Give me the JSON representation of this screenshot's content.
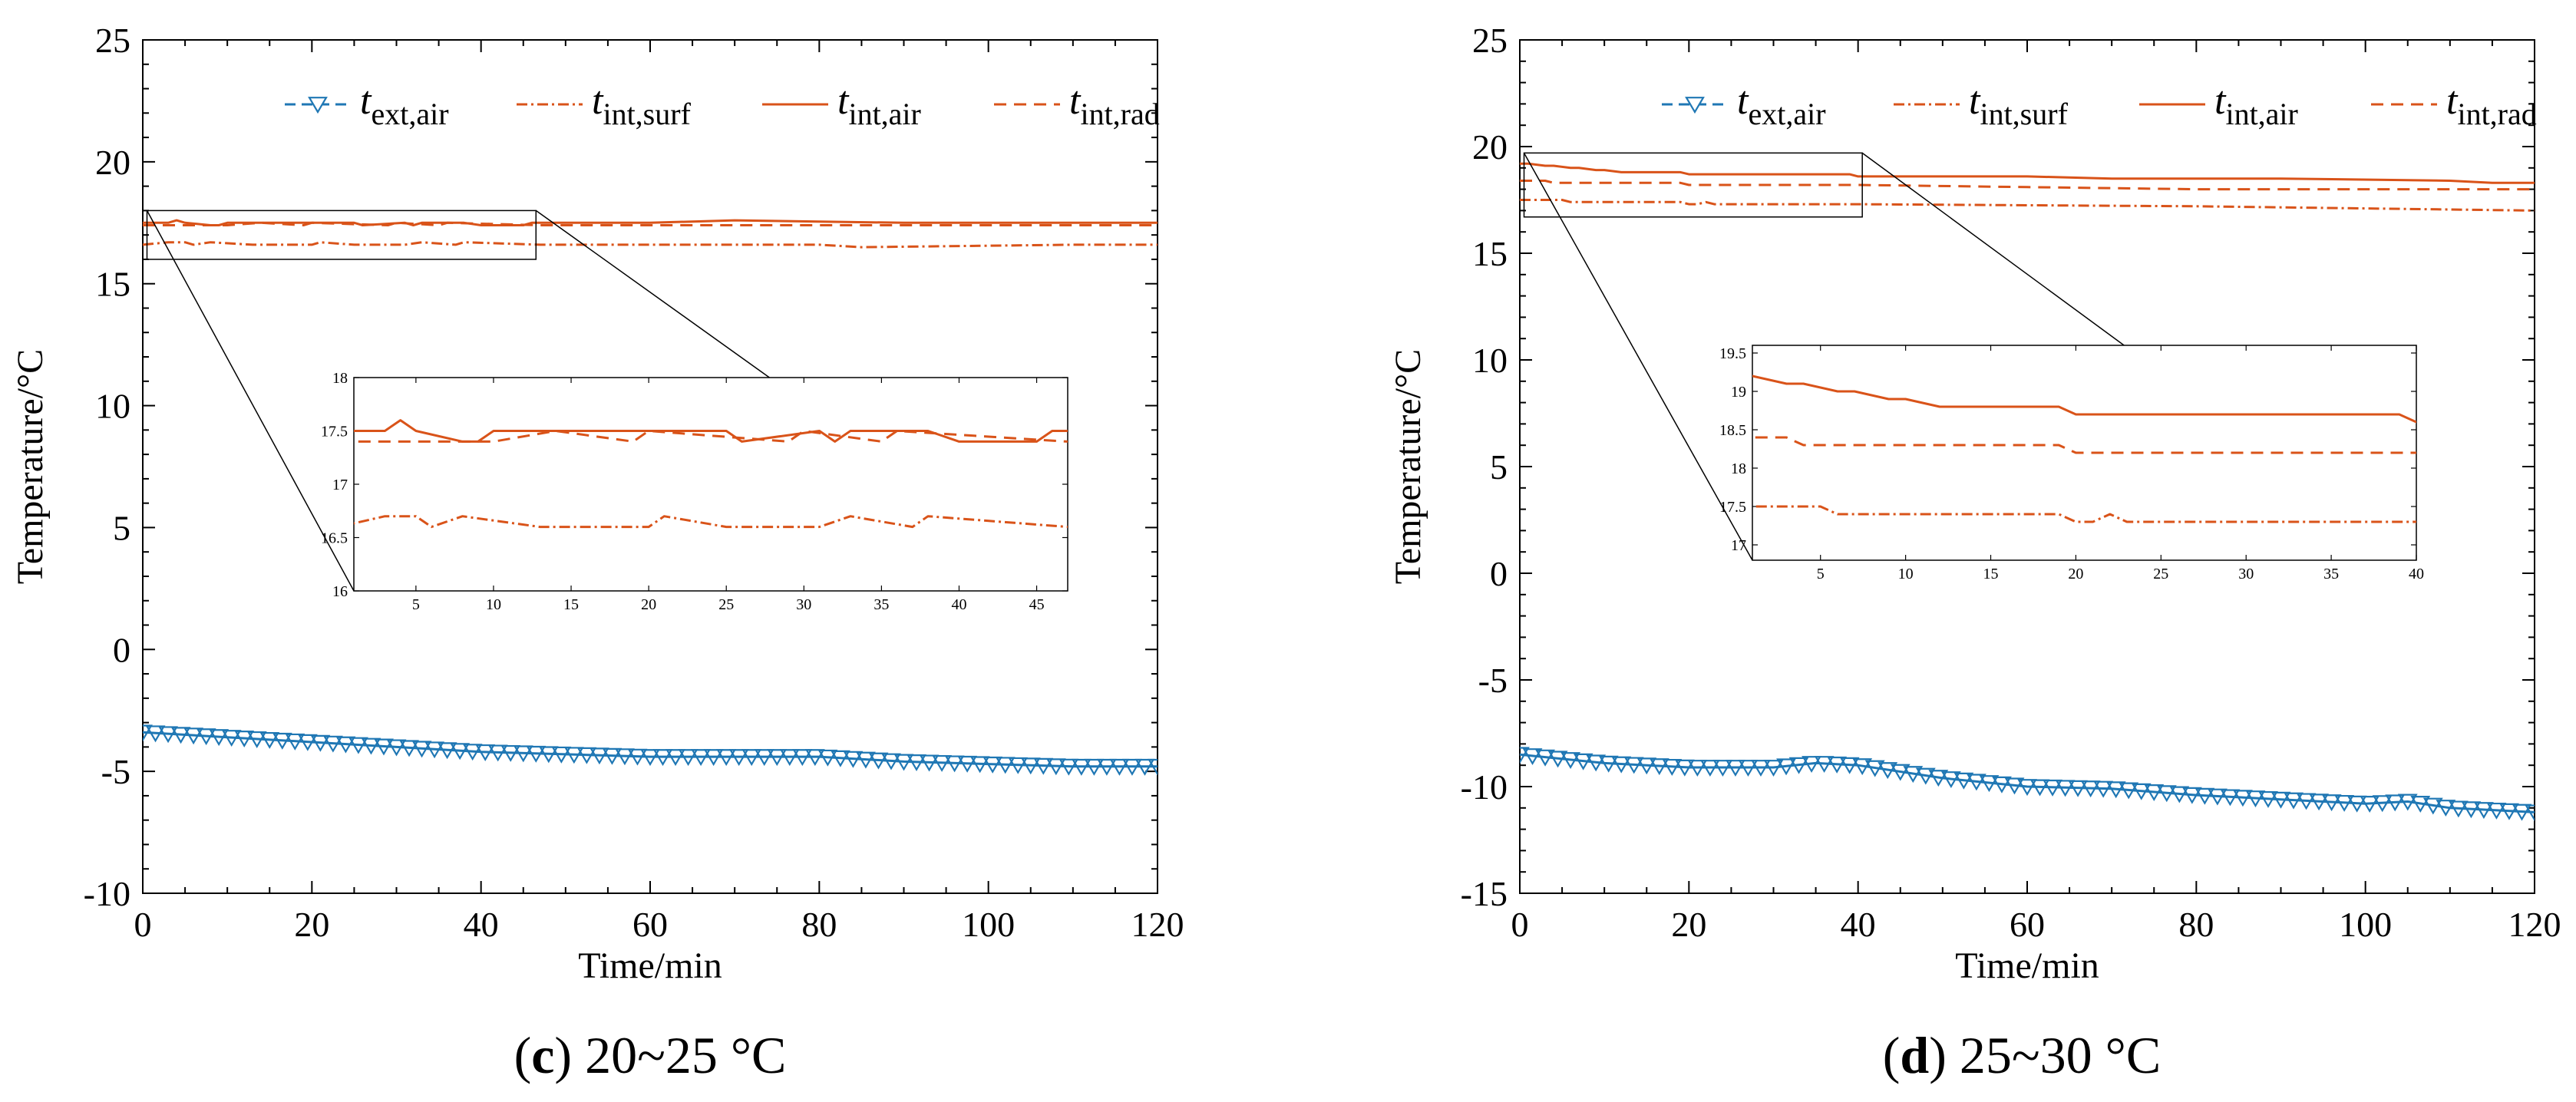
{
  "figure": {
    "panels": [
      "panel-c",
      "panel-d"
    ]
  },
  "chart_data": [
    {
      "id": "panel-c",
      "type": "line",
      "caption_letter": "c",
      "caption_text": " 20~25 °C",
      "xlabel": "Time/min",
      "ylabel": "Temperature/°C",
      "xlim": [
        0,
        120
      ],
      "ylim": [
        -10,
        25
      ],
      "xticks": [
        0,
        20,
        40,
        60,
        80,
        100,
        120
      ],
      "yticks": [
        -10,
        -5,
        0,
        5,
        10,
        15,
        20,
        25
      ],
      "legend": [
        {
          "sym": "t",
          "sub": "ext,air",
          "style": "ext",
          "color": "#1F77B4"
        },
        {
          "sym": "t",
          "sub": "int,surf",
          "style": "surf",
          "color": "#D95319"
        },
        {
          "sym": "t",
          "sub": "int,air",
          "style": "air",
          "color": "#D95319"
        },
        {
          "sym": "t",
          "sub": "int,rad",
          "style": "rad",
          "color": "#D95319"
        }
      ],
      "series": [
        {
          "name": "t_ext,air",
          "style": "ext",
          "color": "#1F77B4",
          "x": [
            0,
            10,
            20,
            30,
            40,
            50,
            60,
            70,
            80,
            90,
            100,
            110,
            120
          ],
          "y": [
            -3.4,
            -3.6,
            -3.8,
            -4.0,
            -4.2,
            -4.3,
            -4.4,
            -4.4,
            -4.4,
            -4.6,
            -4.7,
            -4.8,
            -4.8
          ]
        },
        {
          "name": "t_int,surf",
          "style": "surf",
          "color": "#D95319",
          "x": [
            0,
            3,
            5,
            6,
            8,
            13,
            20,
            21,
            25,
            31,
            33,
            37,
            38,
            47,
            80,
            85,
            110,
            120
          ],
          "y": [
            16.6,
            16.7,
            16.7,
            16.6,
            16.7,
            16.6,
            16.6,
            16.7,
            16.6,
            16.6,
            16.7,
            16.6,
            16.7,
            16.6,
            16.6,
            16.5,
            16.6,
            16.6
          ]
        },
        {
          "name": "t_int,air",
          "style": "air",
          "color": "#D95319",
          "x": [
            0,
            3,
            4,
            5,
            8,
            9,
            10,
            25,
            26,
            31,
            32,
            33,
            38,
            40,
            45,
            46,
            60,
            70,
            90,
            120
          ],
          "y": [
            17.5,
            17.5,
            17.6,
            17.5,
            17.4,
            17.4,
            17.5,
            17.5,
            17.4,
            17.5,
            17.4,
            17.5,
            17.5,
            17.4,
            17.4,
            17.5,
            17.5,
            17.6,
            17.5,
            17.5
          ]
        },
        {
          "name": "t_int,rad",
          "style": "rad",
          "color": "#D95319",
          "x": [
            0,
            10,
            14,
            19,
            20,
            29,
            30,
            35,
            36,
            47,
            120
          ],
          "y": [
            17.4,
            17.4,
            17.5,
            17.4,
            17.5,
            17.4,
            17.5,
            17.4,
            17.5,
            17.4,
            17.4
          ]
        }
      ],
      "zoom_box": {
        "x": [
          0.5,
          46.5
        ],
        "y": [
          16.0,
          18.0
        ]
      },
      "inset": {
        "xlim": [
          1,
          47
        ],
        "ylim": [
          16,
          18
        ],
        "xticks": [
          5,
          10,
          15,
          20,
          25,
          30,
          35,
          40,
          45
        ],
        "yticks": [
          16,
          16.5,
          17,
          17.5,
          18
        ]
      }
    },
    {
      "id": "panel-d",
      "type": "line",
      "caption_letter": "d",
      "caption_text": " 25~30 °C",
      "xlabel": "Time/min",
      "ylabel": "Temperature/°C",
      "xlim": [
        0,
        120
      ],
      "ylim": [
        -15,
        25
      ],
      "xticks": [
        0,
        20,
        40,
        60,
        80,
        100,
        120
      ],
      "yticks": [
        -15,
        -10,
        -5,
        0,
        5,
        10,
        15,
        20,
        25
      ],
      "legend": [
        {
          "sym": "t",
          "sub": "ext,air",
          "style": "ext",
          "color": "#1F77B4"
        },
        {
          "sym": "t",
          "sub": "int,surf",
          "style": "surf",
          "color": "#D95319"
        },
        {
          "sym": "t",
          "sub": "int,air",
          "style": "air",
          "color": "#D95319"
        },
        {
          "sym": "t",
          "sub": "int,rad",
          "style": "rad",
          "color": "#D95319"
        }
      ],
      "series": [
        {
          "name": "t_ext,air",
          "style": "ext",
          "color": "#1F77B4",
          "x": [
            0,
            10,
            20,
            30,
            35,
            40,
            50,
            60,
            70,
            80,
            90,
            100,
            105,
            110,
            120
          ],
          "y": [
            -8.5,
            -8.9,
            -9.1,
            -9.1,
            -8.9,
            -9.0,
            -9.6,
            -10.0,
            -10.1,
            -10.4,
            -10.6,
            -10.8,
            -10.7,
            -11.0,
            -11.2
          ]
        },
        {
          "name": "t_int,surf",
          "style": "surf",
          "color": "#D95319",
          "x": [
            0,
            5,
            6,
            19,
            20,
            21,
            22,
            23,
            40,
            80,
            120
          ],
          "y": [
            17.5,
            17.5,
            17.4,
            17.4,
            17.3,
            17.3,
            17.4,
            17.3,
            17.3,
            17.2,
            17.0
          ]
        },
        {
          "name": "t_int,air",
          "style": "air",
          "color": "#D95319",
          "x": [
            0,
            1,
            3,
            4,
            6,
            7,
            9,
            10,
            12,
            13,
            19,
            20,
            39,
            40,
            60,
            70,
            90,
            110,
            115,
            120
          ],
          "y": [
            19.2,
            19.2,
            19.1,
            19.1,
            19.0,
            19.0,
            18.9,
            18.9,
            18.8,
            18.8,
            18.8,
            18.7,
            18.7,
            18.6,
            18.6,
            18.5,
            18.5,
            18.4,
            18.3,
            18.3
          ]
        },
        {
          "name": "t_int,rad",
          "style": "rad",
          "color": "#D95319",
          "x": [
            0,
            3,
            4,
            19,
            20,
            40,
            60,
            80,
            120
          ],
          "y": [
            18.4,
            18.4,
            18.3,
            18.3,
            18.2,
            18.2,
            18.1,
            18.0,
            18.0
          ]
        }
      ],
      "zoom_box": {
        "x": [
          0.5,
          40.5
        ],
        "y": [
          16.7,
          19.7
        ]
      },
      "inset": {
        "xlim": [
          1,
          40
        ],
        "ylim": [
          16.8,
          19.6
        ],
        "xticks": [
          5,
          10,
          15,
          20,
          25,
          30,
          35,
          40
        ],
        "yticks": [
          17,
          17.5,
          18,
          18.5,
          19,
          19.5
        ]
      }
    }
  ]
}
